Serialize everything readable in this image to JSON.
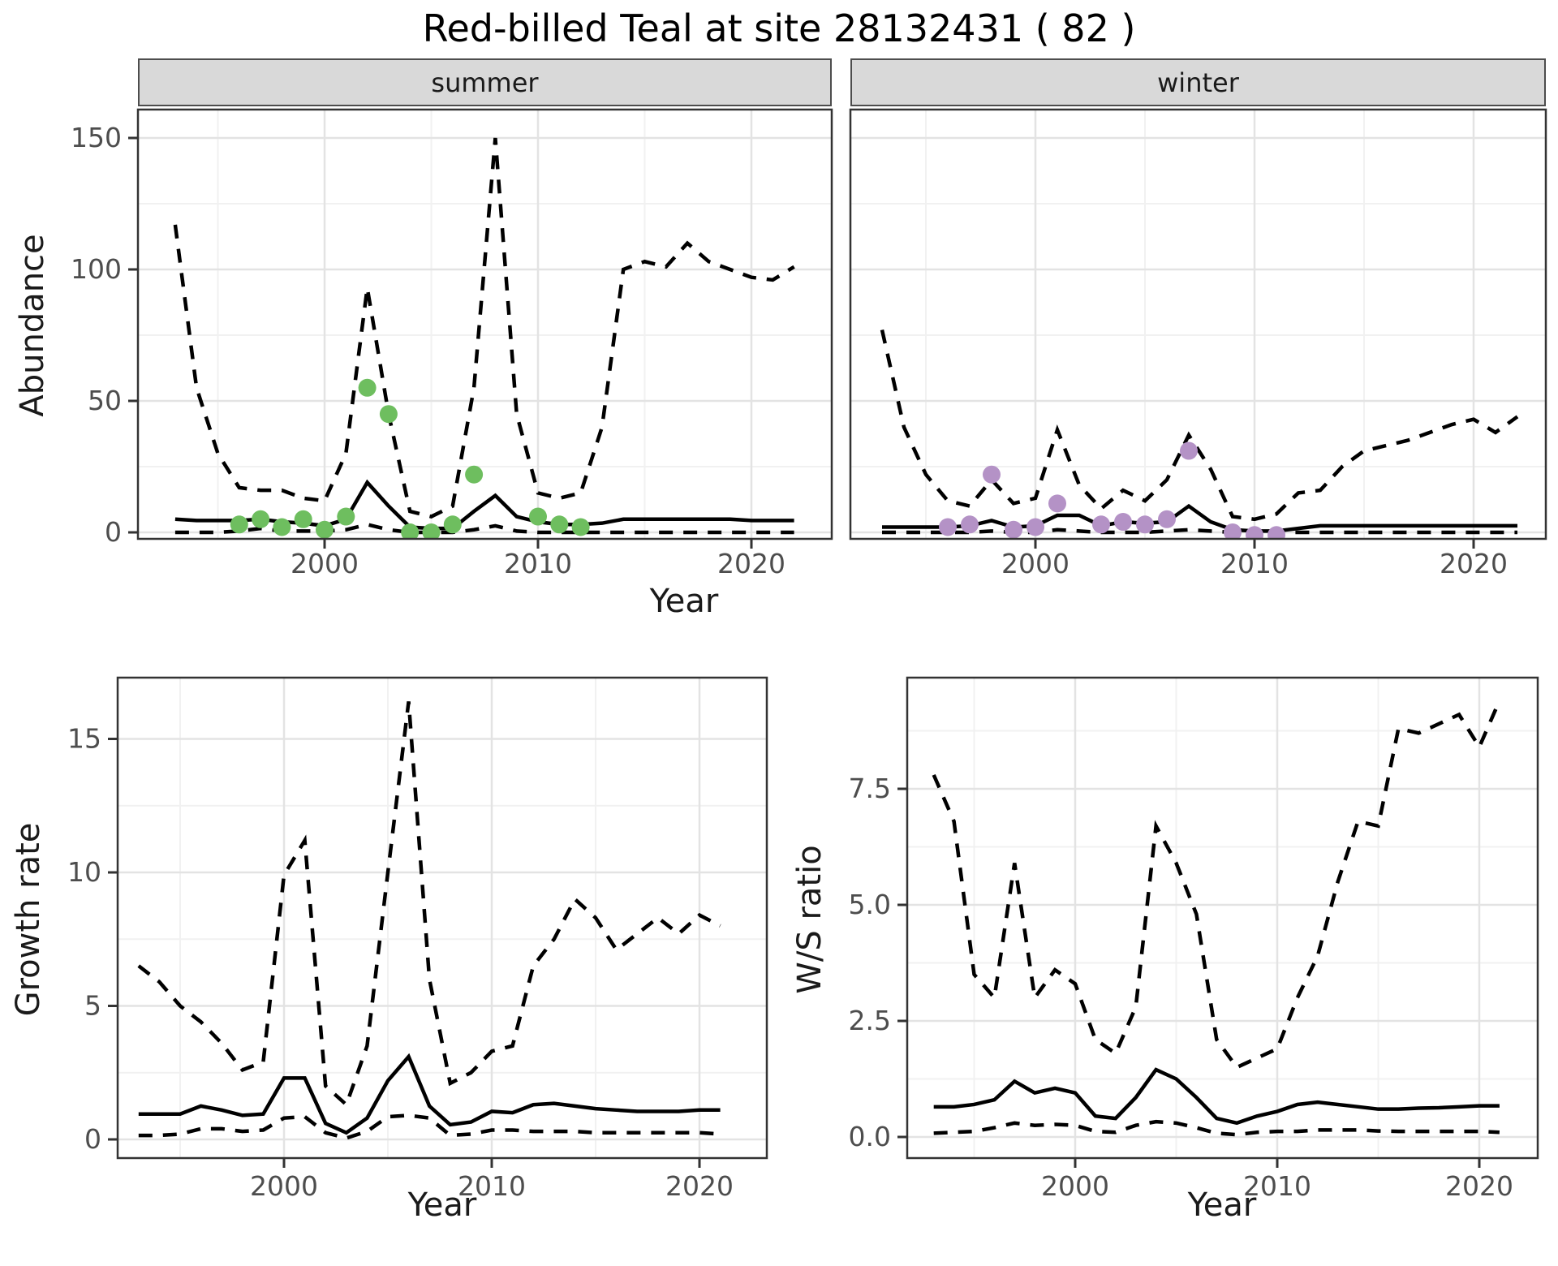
{
  "title": "Red-billed Teal at site 28132431 ( 82 )",
  "axes": {
    "abundance_label": "Abundance",
    "year_label_top": "Year",
    "growth_label": "Growth rate",
    "ws_label": "W/S ratio",
    "year_label_bottom_left": "Year",
    "year_label_bottom_right": "Year"
  },
  "colors": {
    "summer_points": "#6EBE5F",
    "winter_points": "#B492C6",
    "line": "#000000",
    "strip_bg": "#D9D9D9",
    "grid_major": "#E3E3E3",
    "grid_minor": "#F1F1F1",
    "panel_border": "#333333",
    "tick_text": "#4D4D4D"
  },
  "chart_data": [
    {
      "id": "summer",
      "type": "line",
      "facet_label": "summer",
      "xlabel": "Year",
      "ylabel": "Abundance",
      "xlim": [
        1991.3,
        2023.8
      ],
      "ylim": [
        -2.5,
        161
      ],
      "legend": "none",
      "grid": true,
      "x": [
        1993,
        1994,
        1995,
        1996,
        1997,
        1998,
        1999,
        2000,
        2001,
        2002,
        2003,
        2004,
        2005,
        2006,
        2007,
        2008,
        2009,
        2010,
        2011,
        2012,
        2013,
        2014,
        2015,
        2016,
        2017,
        2018,
        2019,
        2020,
        2021,
        2022
      ],
      "series": [
        {
          "name": "fit",
          "style": "solid",
          "values": [
            5,
            4.5,
            4.5,
            4.5,
            5,
            4,
            3.5,
            2.5,
            5,
            19,
            10,
            2,
            1.5,
            1.5,
            8,
            14,
            6,
            4,
            3,
            3,
            3.5,
            5,
            5,
            5,
            5,
            5,
            5,
            4.5,
            4.5,
            4.5
          ]
        },
        {
          "name": "upper_ci",
          "style": "dashed",
          "values": [
            117,
            55,
            30,
            17,
            16,
            16,
            13,
            12,
            30,
            93,
            45,
            8,
            6,
            10,
            55,
            150,
            45,
            15,
            13,
            15,
            40,
            100,
            103,
            101,
            110,
            103,
            100,
            97,
            96,
            101
          ]
        },
        {
          "name": "lower_ci",
          "style": "dashed",
          "values": [
            0,
            0,
            0,
            0.5,
            1.5,
            0.5,
            0.5,
            0.5,
            1,
            3,
            1,
            0,
            0,
            0,
            1,
            2.5,
            0.5,
            0,
            0,
            0,
            0,
            0,
            0,
            0,
            0,
            0,
            0,
            0,
            0,
            0
          ]
        }
      ],
      "points": [
        [
          1996,
          3
        ],
        [
          1997,
          5
        ],
        [
          1998,
          2
        ],
        [
          1999,
          5
        ],
        [
          2000,
          1
        ],
        [
          2001,
          6
        ],
        [
          2002,
          55
        ],
        [
          2003,
          45
        ],
        [
          2004,
          0
        ],
        [
          2005,
          0
        ],
        [
          2006,
          3
        ],
        [
          2007,
          22
        ],
        [
          2010,
          6
        ],
        [
          2011,
          3
        ],
        [
          2012,
          2
        ]
      ],
      "point_color": "#6EBE5F",
      "xticks": [
        {
          "v": 2000,
          "label": "2000"
        },
        {
          "v": 2010,
          "label": "2010"
        },
        {
          "v": 2020,
          "label": "2020"
        }
      ],
      "yticks": [
        {
          "v": 0,
          "label": "0"
        },
        {
          "v": 50,
          "label": "50"
        },
        {
          "v": 100,
          "label": "100"
        },
        {
          "v": 150,
          "label": "150"
        }
      ],
      "xminor": [
        1995,
        2005,
        2015
      ],
      "yminor": [
        25,
        75,
        125
      ],
      "ytick_labels_visible": true
    },
    {
      "id": "winter",
      "type": "line",
      "facet_label": "winter",
      "xlabel": "Year",
      "ylabel": "Abundance",
      "xlim": [
        1991.6,
        2023.3
      ],
      "ylim": [
        -2.5,
        161
      ],
      "legend": "none",
      "grid": true,
      "x": [
        1993,
        1994,
        1995,
        1996,
        1997,
        1998,
        1999,
        2000,
        2001,
        2002,
        2003,
        2004,
        2005,
        2006,
        2007,
        2008,
        2009,
        2010,
        2011,
        2012,
        2013,
        2014,
        2015,
        2016,
        2017,
        2018,
        2019,
        2020,
        2021,
        2022
      ],
      "series": [
        {
          "name": "fit",
          "style": "solid",
          "values": [
            2,
            2,
            2,
            2,
            2.5,
            4.5,
            2,
            2.5,
            6.5,
            6.5,
            2.5,
            4,
            3.5,
            4,
            10,
            4,
            1,
            0.5,
            0.5,
            1.5,
            2.5,
            2.5,
            2.5,
            2.5,
            2.5,
            2.5,
            2.5,
            2.5,
            2.5,
            2.5
          ]
        },
        {
          "name": "upper_ci",
          "style": "dashed",
          "values": [
            77,
            40,
            22,
            12,
            10,
            20,
            11,
            13,
            39,
            18,
            9,
            16,
            12,
            20,
            37,
            24,
            6,
            5,
            7,
            15,
            16,
            25,
            31,
            33,
            35,
            38,
            41,
            43,
            38,
            44
          ]
        },
        {
          "name": "lower_ci",
          "style": "dashed",
          "values": [
            0,
            0,
            0,
            0,
            0,
            0.5,
            0,
            0,
            1,
            0.5,
            0,
            0,
            0,
            0.5,
            1,
            0.5,
            0,
            0,
            0,
            0,
            0,
            0,
            0,
            0,
            0,
            0,
            0,
            0,
            0,
            0
          ]
        }
      ],
      "points": [
        [
          1996,
          2
        ],
        [
          1997,
          3
        ],
        [
          1998,
          22
        ],
        [
          1999,
          1
        ],
        [
          2000,
          2
        ],
        [
          2001,
          11
        ],
        [
          2003,
          3
        ],
        [
          2004,
          4
        ],
        [
          2005,
          3
        ],
        [
          2006,
          5
        ],
        [
          2007,
          31
        ],
        [
          2009,
          0
        ],
        [
          2010,
          -1
        ],
        [
          2011,
          -1
        ]
      ],
      "point_color": "#B492C6",
      "xticks": [
        {
          "v": 2000,
          "label": "2000"
        },
        {
          "v": 2010,
          "label": "2010"
        },
        {
          "v": 2020,
          "label": "2020"
        }
      ],
      "yticks": [
        {
          "v": 0,
          "label": "0"
        },
        {
          "v": 50,
          "label": "50"
        },
        {
          "v": 100,
          "label": "100"
        },
        {
          "v": 150,
          "label": "150"
        }
      ],
      "xminor": [
        1995,
        2005,
        2015
      ],
      "yminor": [
        25,
        75,
        125
      ],
      "ytick_labels_visible": false
    },
    {
      "id": "growth",
      "type": "line",
      "facet_label": "",
      "xlabel": "Year",
      "ylabel": "Growth rate",
      "xlim": [
        1992.0,
        2023.2
      ],
      "ylim": [
        -0.7,
        17.3
      ],
      "legend": "none",
      "grid": true,
      "x": [
        1993,
        1994,
        1995,
        1996,
        1997,
        1998,
        1999,
        2000,
        2001,
        2002,
        2003,
        2004,
        2005,
        2006,
        2007,
        2008,
        2009,
        2010,
        2011,
        2012,
        2013,
        2014,
        2015,
        2016,
        2017,
        2018,
        2019,
        2020,
        2021
      ],
      "series": [
        {
          "name": "fit",
          "style": "solid",
          "values": [
            0.95,
            0.95,
            0.95,
            1.25,
            1.1,
            0.9,
            0.95,
            2.3,
            2.3,
            0.6,
            0.25,
            0.8,
            2.2,
            3.1,
            1.25,
            0.55,
            0.65,
            1.05,
            1,
            1.3,
            1.35,
            1.25,
            1.15,
            1.1,
            1.05,
            1.05,
            1.05,
            1.1,
            1.1
          ]
        },
        {
          "name": "upper_ci",
          "style": "dashed",
          "values": [
            6.5,
            5.9,
            5,
            4.4,
            3.6,
            2.6,
            2.9,
            9.9,
            11.2,
            2,
            1.3,
            3.5,
            10,
            16.4,
            6,
            2.1,
            2.5,
            3.3,
            3.5,
            6.5,
            7.5,
            9,
            8.3,
            7.1,
            7.7,
            8.3,
            7.7,
            8.4,
            8
          ]
        },
        {
          "name": "lower_ci",
          "style": "dashed",
          "values": [
            0.15,
            0.15,
            0.2,
            0.4,
            0.4,
            0.3,
            0.35,
            0.8,
            0.85,
            0.25,
            0.05,
            0.3,
            0.85,
            0.9,
            0.8,
            0.15,
            0.2,
            0.35,
            0.35,
            0.3,
            0.3,
            0.3,
            0.25,
            0.25,
            0.25,
            0.25,
            0.25,
            0.25,
            0.2
          ]
        }
      ],
      "points": [],
      "point_color": "#000000",
      "xticks": [
        {
          "v": 2000,
          "label": "2000"
        },
        {
          "v": 2010,
          "label": "2010"
        },
        {
          "v": 2020,
          "label": "2020"
        }
      ],
      "yticks": [
        {
          "v": 0,
          "label": "0"
        },
        {
          "v": 5,
          "label": "5"
        },
        {
          "v": 10,
          "label": "10"
        },
        {
          "v": 15,
          "label": "15"
        }
      ],
      "xminor": [
        1995,
        2005,
        2015
      ],
      "yminor": [
        2.5,
        7.5,
        12.5
      ],
      "ytick_labels_visible": true
    },
    {
      "id": "ws",
      "type": "line",
      "facet_label": "",
      "xlabel": "Year",
      "ylabel": "W/S ratio",
      "xlim": [
        1991.7,
        2022.9
      ],
      "ylim": [
        -0.45,
        9.9
      ],
      "legend": "none",
      "grid": true,
      "x": [
        1993,
        1994,
        1995,
        1996,
        1997,
        1998,
        1999,
        2000,
        2001,
        2002,
        2003,
        2004,
        2005,
        2006,
        2007,
        2008,
        2009,
        2010,
        2011,
        2012,
        2013,
        2014,
        2015,
        2016,
        2017,
        2018,
        2019,
        2020,
        2021
      ],
      "series": [
        {
          "name": "fit",
          "style": "solid",
          "values": [
            0.65,
            0.65,
            0.7,
            0.8,
            1.2,
            0.95,
            1.05,
            0.95,
            0.45,
            0.4,
            0.85,
            1.45,
            1.25,
            0.85,
            0.4,
            0.3,
            0.45,
            0.55,
            0.7,
            0.75,
            0.7,
            0.65,
            0.6,
            0.6,
            0.62,
            0.63,
            0.65,
            0.67,
            0.67
          ]
        },
        {
          "name": "upper_ci",
          "style": "dashed",
          "values": [
            7.8,
            6.8,
            3.5,
            3,
            5.9,
            3,
            3.6,
            3.3,
            2.1,
            1.8,
            2.8,
            6.7,
            5.9,
            4.8,
            2.1,
            1.5,
            1.7,
            1.9,
            3,
            3.9,
            5.5,
            6.8,
            6.7,
            8.8,
            8.7,
            8.9,
            9.1,
            8.4,
            9.4
          ]
        },
        {
          "name": "lower_ci",
          "style": "dashed",
          "values": [
            0.08,
            0.1,
            0.12,
            0.2,
            0.3,
            0.25,
            0.27,
            0.25,
            0.12,
            0.1,
            0.25,
            0.33,
            0.3,
            0.2,
            0.08,
            0.05,
            0.1,
            0.12,
            0.12,
            0.15,
            0.15,
            0.15,
            0.13,
            0.12,
            0.12,
            0.12,
            0.12,
            0.12,
            0.1
          ]
        }
      ],
      "points": [],
      "point_color": "#000000",
      "xticks": [
        {
          "v": 2000,
          "label": "2000"
        },
        {
          "v": 2010,
          "label": "2010"
        },
        {
          "v": 2020,
          "label": "2020"
        }
      ],
      "yticks": [
        {
          "v": 0,
          "label": "0.0"
        },
        {
          "v": 2.5,
          "label": "2.5"
        },
        {
          "v": 5,
          "label": "5.0"
        },
        {
          "v": 7.5,
          "label": "7.5"
        }
      ],
      "xminor": [
        1995,
        2005,
        2015
      ],
      "yminor": [
        1.25,
        3.75,
        6.25,
        8.75
      ],
      "ytick_labels_visible": true
    }
  ]
}
